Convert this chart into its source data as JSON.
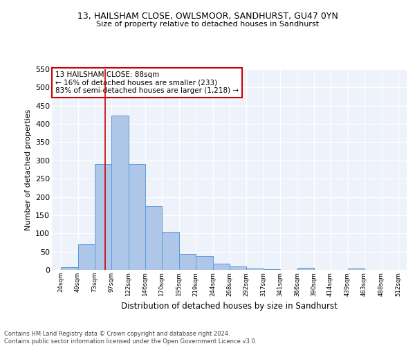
{
  "title1": "13, HAILSHAM CLOSE, OWLSMOOR, SANDHURST, GU47 0YN",
  "title2": "Size of property relative to detached houses in Sandhurst",
  "xlabel": "Distribution of detached houses by size in Sandhurst",
  "ylabel": "Number of detached properties",
  "bar_values": [
    8,
    70,
    291,
    422,
    290,
    175,
    105,
    44,
    38,
    17,
    9,
    4,
    1,
    0,
    5,
    0,
    0,
    4
  ],
  "x_tick_labels": [
    "24sqm",
    "49sqm",
    "73sqm",
    "97sqm",
    "122sqm",
    "146sqm",
    "170sqm",
    "195sqm",
    "219sqm",
    "244sqm",
    "268sqm",
    "292sqm",
    "317sqm",
    "341sqm",
    "366sqm",
    "390sqm",
    "414sqm",
    "439sqm",
    "463sqm",
    "488sqm",
    "512sqm"
  ],
  "bar_color": "#aec6e8",
  "bar_edge_color": "#5b9bd5",
  "vline_x": 88,
  "vline_color": "#cc0000",
  "ylim": [
    0,
    550
  ],
  "yticks": [
    0,
    50,
    100,
    150,
    200,
    250,
    300,
    350,
    400,
    450,
    500,
    550
  ],
  "annotation_text": "13 HAILSHAM CLOSE: 88sqm\n← 16% of detached houses are smaller (233)\n83% of semi-detached houses are larger (1,218) →",
  "annotation_border_color": "#cc0000",
  "footer_text": "Contains HM Land Registry data © Crown copyright and database right 2024.\nContains public sector information licensed under the Open Government Licence v3.0.",
  "plot_bg_color": "#eef2fa"
}
